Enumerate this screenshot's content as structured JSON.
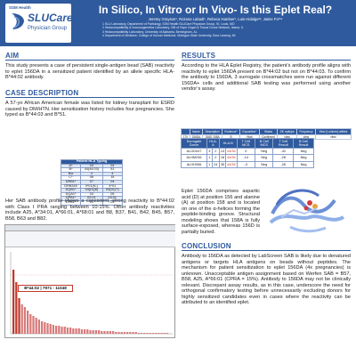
{
  "header": {
    "logo_top": "SSM Health",
    "logo_name": "SLUCare",
    "logo_sub": "Physician Group",
    "title": "In Silico, In Vitro or In Vivo- Is this Eplet Real?",
    "authors": "Jeremy Grayson¹, Rozana Labadi¹, Rebeca Hardner¹, Luis Hidalgo²³, Jaime Fo²³⁴",
    "affiliations": [
      "1 SLU Laboratory, Department of Pathology, SSM Health SLUCare Physician Group, St. Louis, MO",
      "2 Histocompatibility & Immunogenetics Laboratory, Gift of Hope Organ & Tissue Donor Network, Itasca, IL",
      "3 Histocompatibility Laboratory, University of Alabama, Birmingham, AL",
      "4 Department of Medicine, College of Human Medicine, Michigan State University, East Lansing, MI"
    ],
    "primary_color": "#2f5a9e"
  },
  "aim": {
    "heading": "AIM",
    "text": "This study presents a case of persistent single-antigen bead (SAB) reactivity to eplet 156DA in a sensitized patient identified by an allele specific HLA-B*44:02 antibody."
  },
  "case": {
    "heading": "CASE DESCRIPTION",
    "text": "A 57-yo African American female was listed for kidney transplant for ESRD caused by DM/HTN. Her sensitization history includes four pregnancies. She typed as B*44:03 and B*51.",
    "text2": "Her SAB antibody profile shows a consistent, strong reactivity to B*44:02 with Class I PRA ranging between 10-15%. Other antibody reactivities include A25, A*34:01, A*66:01, A*68:01 and B8, B37, B41, B42, B45, B57, B58, B63 and B82."
  },
  "hla_typing": {
    "caption": "Patient HLA Typing",
    "rows": [
      [
        "A*",
        "03",
        "24"
      ],
      [
        "B*",
        "44(44:03)",
        "51"
      ],
      [
        "Bw",
        "4",
        "4"
      ],
      [
        "C*",
        "06",
        "15"
      ],
      [
        "DRB1*",
        "07",
        "04"
      ],
      [
        "DRB345",
        "4*01(N-)",
        "4*01"
      ],
      [
        "DQB1*",
        "03(DQ8)",
        "03(DQ7)"
      ],
      [
        "DQA1*",
        "03",
        "05"
      ],
      [
        "DPB1*",
        "02:01",
        "03:01"
      ],
      [
        "DPA1*",
        "01",
        "01"
      ]
    ]
  },
  "results": {
    "heading": "RESULTS",
    "text": "According to the HLA Eplet Registry, the patient’s antibody profile aligns with reactivity to eplet 156DA present on B*44:02 but not on B*44:03. To confirm the antibody to 156DA, 3 surrogate crossmatches were run against different 156DA+ cells and additional SAB testing was performed using another vendor’s assay.",
    "epitope_headers": [
      "Name",
      "Description",
      "Evidence*",
      "Exposition*",
      "Status",
      "Eff. epitope",
      "Frequency",
      "View (Luminex) alleles"
    ],
    "epitope_row": [
      "170",
      "156DA",
      "156D 158A",
      "B",
      "High",
      "Confirmed",
      "view",
      "view",
      "view"
    ],
    "reactivity_headers": [
      "Surrogate Donor",
      "HLA-A",
      "HLA-B",
      "T Cell MCS",
      "B Cell MCS",
      "T Cell Result",
      "B Cell Result"
    ],
    "reactivity_rows": [
      [
        "ALOD047",
        "3",
        "2",
        "13",
        "44/35",
        "0",
        "Neg",
        "-32",
        "Neg"
      ],
      [
        "ALHM246",
        "1",
        "2",
        "18",
        "44/35",
        "-14",
        "Neg",
        "-28",
        "Neg"
      ],
      [
        "ALHH056",
        "1",
        "24",
        "35",
        "44/35",
        "-3",
        "Neg",
        "-26",
        "Neg"
      ]
    ],
    "epitope_text": "Eplet 156DA comprises aspartic acid (D) at position 156 and alanine (A) at position 158 and is located on one of the α-helices forming the peptide-binding groove. Structural modeling shows that 158A is fully surface-exposed, whereas 156D is partially buried."
  },
  "plot": {
    "callout": "B*44:02 | 7971 - 11048"
  },
  "conclusion": {
    "heading": "CONCLUSION",
    "text": "Antibody to 156DA as detected by LabScreen SAB is likely due to denatured antigens or targets HLA antigens on beads without peptides. The mechanism for patient sensitization to eplet 156DA (4x pregnancies) is unknown. Unacceptable antigen assignment based on Werfen SAB = B57, B58, A25, A*66:01 (CPRA = 15%). Antibody to 156DA may not be clinically relevant. Discrepant assay results, as in this case, underscore the need for orthogonal confirmatory testing before unnecessarily excluding donors for highly sensitized candidates even in cases where the reactivity can be attributed to an identified eplet."
  }
}
